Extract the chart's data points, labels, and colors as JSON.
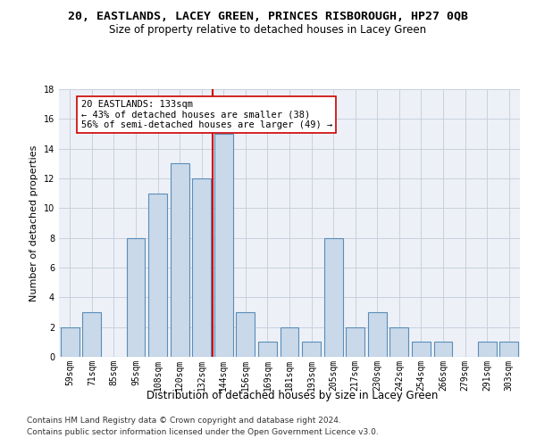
{
  "title": "20, EASTLANDS, LACEY GREEN, PRINCES RISBOROUGH, HP27 0QB",
  "subtitle": "Size of property relative to detached houses in Lacey Green",
  "xlabel": "Distribution of detached houses by size in Lacey Green",
  "ylabel": "Number of detached properties",
  "bar_labels": [
    "59sqm",
    "71sqm",
    "85sqm",
    "95sqm",
    "108sqm",
    "120sqm",
    "132sqm",
    "144sqm",
    "156sqm",
    "169sqm",
    "181sqm",
    "193sqm",
    "205sqm",
    "217sqm",
    "230sqm",
    "242sqm",
    "254sqm",
    "266sqm",
    "279sqm",
    "291sqm",
    "303sqm"
  ],
  "bar_heights": [
    2,
    3,
    0,
    8,
    11,
    13,
    12,
    15,
    3,
    1,
    2,
    1,
    8,
    2,
    3,
    2,
    1,
    1,
    0,
    1,
    1
  ],
  "bar_color": "#c9d9ea",
  "bar_edge_color": "#5b8db8",
  "vline_index": 6,
  "vline_color": "#cc0000",
  "ylim": [
    0,
    18
  ],
  "yticks": [
    0,
    2,
    4,
    6,
    8,
    10,
    12,
    14,
    16,
    18
  ],
  "annotation_text": "20 EASTLANDS: 133sqm\n← 43% of detached houses are smaller (38)\n56% of semi-detached houses are larger (49) →",
  "footer_line1": "Contains HM Land Registry data © Crown copyright and database right 2024.",
  "footer_line2": "Contains public sector information licensed under the Open Government Licence v3.0.",
  "bg_color": "#edf1f7",
  "grid_color": "#c8d0de",
  "title_fontsize": 9.5,
  "subtitle_fontsize": 8.5,
  "axis_label_fontsize": 8,
  "tick_fontsize": 7,
  "annot_fontsize": 7.5,
  "footer_fontsize": 6.5
}
